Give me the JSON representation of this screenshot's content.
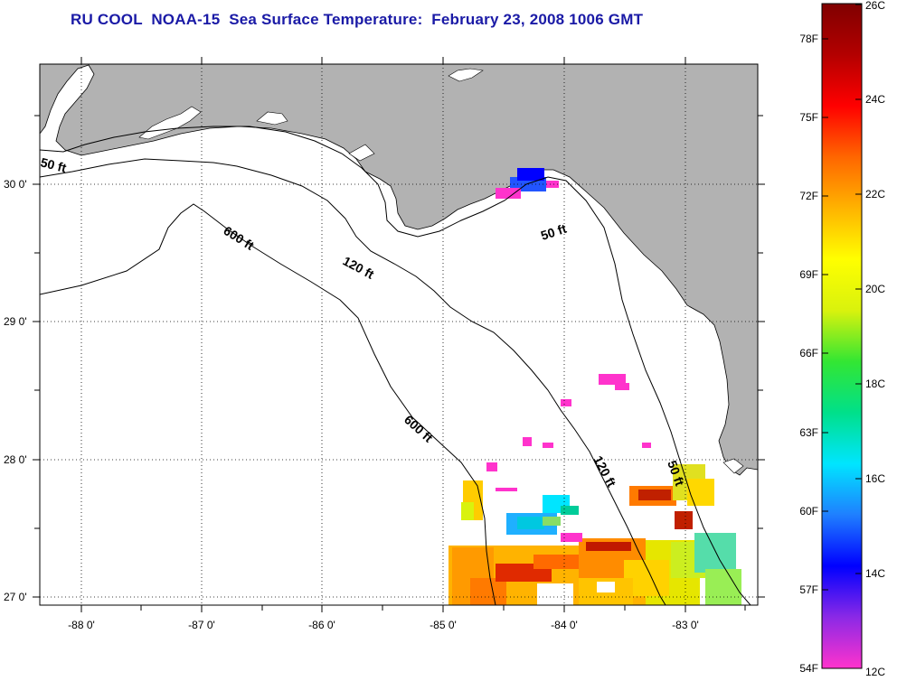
{
  "title": "RU COOL  NOAA-15  Sea Surface Temperature:  February 23, 2008 1006 GMT",
  "colors": {
    "land": "#b2b2b2",
    "frame": "#000000",
    "title": "#1a1aa6"
  },
  "axes": {
    "lat_labels": [
      "30 0'",
      "29 0'",
      "28 0'",
      "27 0'"
    ],
    "lon_labels": [
      "-88 0'",
      "-87 0'",
      "-86 0'",
      "-85 0'",
      "-84 0'",
      "-83 0'"
    ]
  },
  "contours": {
    "labels": [
      "50 ft",
      "50 ft",
      "50 ft",
      "120 ft",
      "120 ft",
      "600 ft",
      "600 ft"
    ]
  },
  "colorbar": {
    "fahrenheit_labels": [
      "54F",
      "57F",
      "60F",
      "63F",
      "66F",
      "69F",
      "72F",
      "75F",
      "78F"
    ],
    "celsius_labels": [
      "12C",
      "14C",
      "16C",
      "18C",
      "20C",
      "22C",
      "24C",
      "26C"
    ],
    "colors_bottom_to_top": [
      "#ff33cc",
      "#8b29e6",
      "#0000ff",
      "#1f7fff",
      "#00e5ff",
      "#00e08a",
      "#33e633",
      "#d9f20d",
      "#ffff00",
      "#ffb300",
      "#ff6600",
      "#ff0000",
      "#b30000",
      "#800000"
    ]
  }
}
